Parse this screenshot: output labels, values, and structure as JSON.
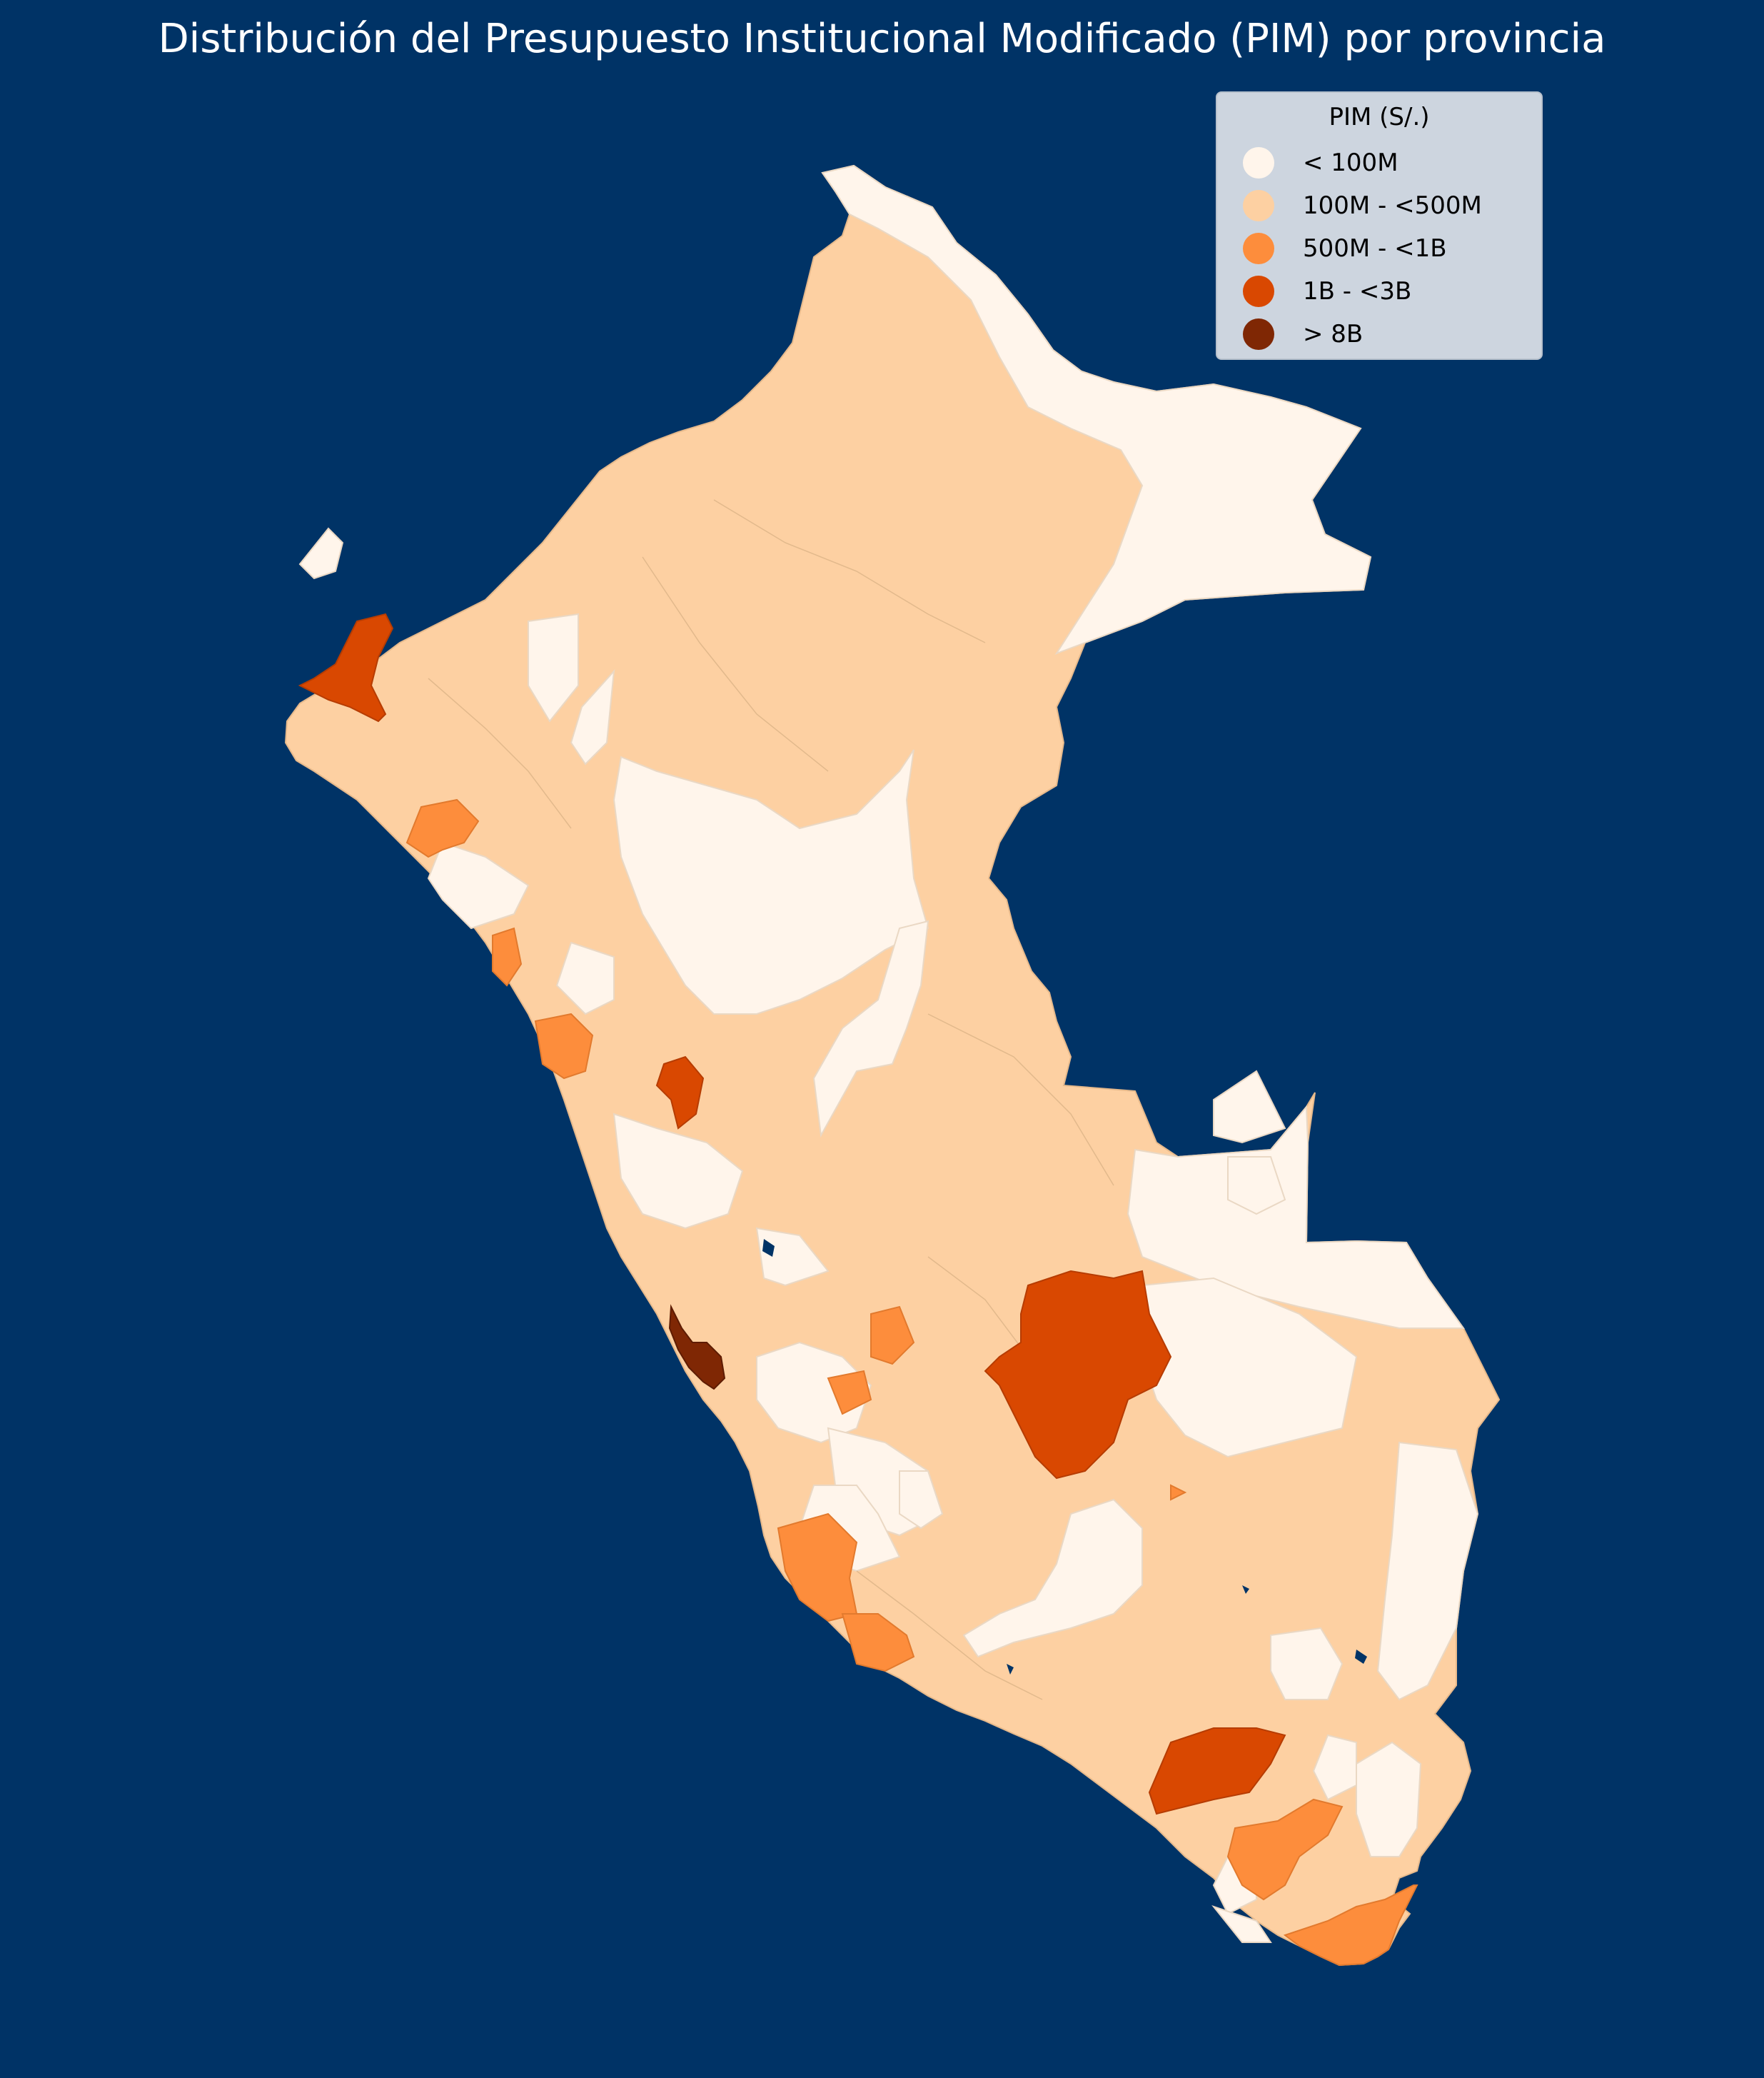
{
  "title": "Distribución del Presupuesto Institucional Modificado (PIM) por provincia",
  "legend": {
    "title": "PIM (S/.)",
    "items": [
      {
        "label": "< 100M",
        "color": "#fff5eb"
      },
      {
        "label": "100M - <500M",
        "color": "#fdd0a2"
      },
      {
        "label": "500M - <1B",
        "color": "#fd8d3c"
      },
      {
        "label": "1B - <3B",
        "color": "#d94801"
      },
      {
        "label": "> 8B",
        "color": "#7f2704"
      }
    ]
  },
  "colors": {
    "background": "#003366",
    "title_text": "#ffffff",
    "legend_bg": "#cdd5df"
  }
}
